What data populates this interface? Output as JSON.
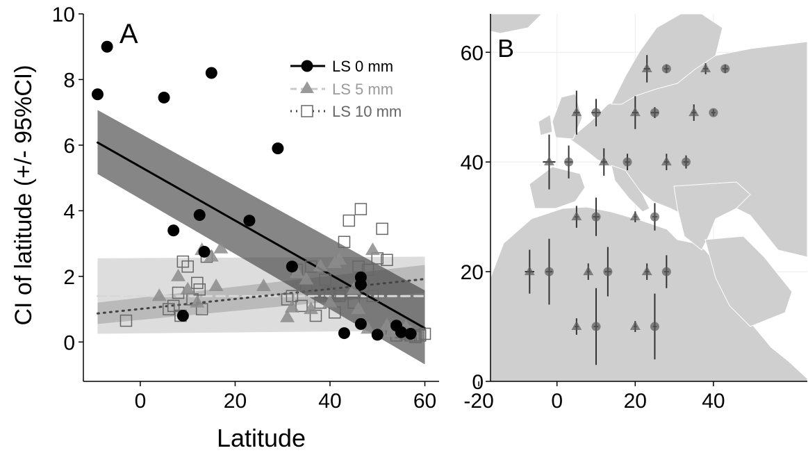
{
  "chart_data": [
    {
      "type": "scatter",
      "panel_label": "A",
      "xlabel": "Latitude",
      "ylabel": "CI of latitude (+/- 95%CI)",
      "xlim": [
        -12,
        63
      ],
      "ylim": [
        -1.2,
        10
      ],
      "xticks": [
        0,
        20,
        40,
        60
      ],
      "yticks": [
        0,
        2,
        4,
        6,
        8,
        10
      ],
      "grid": false,
      "legend_position": "top-right",
      "series": [
        {
          "name": "LS 0 mm",
          "marker": "filled-circle",
          "color": "#000000",
          "points": [
            [
              -9,
              7.55
            ],
            [
              -7,
              9.0
            ],
            [
              5,
              7.45
            ],
            [
              15,
              8.2
            ],
            [
              29,
              5.9
            ],
            [
              23,
              3.7
            ],
            [
              12.5,
              3.87
            ],
            [
              7,
              3.4
            ],
            [
              13.5,
              2.75
            ],
            [
              32,
              2.3
            ],
            [
              9,
              0.8
            ],
            [
              43,
              0.27
            ],
            [
              46.5,
              0.55
            ],
            [
              46.5,
              1.97
            ],
            [
              46.5,
              1.75
            ],
            [
              50,
              0.22
            ],
            [
              54,
              0.5
            ],
            [
              55,
              0.3
            ],
            [
              57,
              0.25
            ]
          ],
          "fit": {
            "x": [
              -9,
              60
            ],
            "y": [
              6.08,
              0.42
            ],
            "ci_low": [
              5.12,
              -0.68
            ],
            "ci_high": [
              7.07,
              1.57
            ],
            "line_style": "solid"
          }
        },
        {
          "name": "LS 5 mm",
          "marker": "filled-triangle",
          "color": "#9a9a9a",
          "points": [
            [
              4,
              1.4
            ],
            [
              8,
              2.0
            ],
            [
              10,
              1.6
            ],
            [
              12,
              1.2
            ],
            [
              13,
              2.8
            ],
            [
              15,
              2.6
            ],
            [
              17,
              2.85
            ],
            [
              16,
              1.7
            ],
            [
              26,
              1.7
            ],
            [
              31,
              0.75
            ],
            [
              32,
              1.05
            ],
            [
              33,
              2.1
            ],
            [
              35,
              1.9
            ],
            [
              36,
              1.0
            ],
            [
              38,
              2.3
            ],
            [
              40,
              1.2
            ],
            [
              41,
              2.4
            ],
            [
              42,
              2.5
            ],
            [
              45,
              1.6
            ],
            [
              46,
              1.0
            ],
            [
              48,
              0.4
            ],
            [
              49,
              2.8
            ],
            [
              52,
              0.5
            ],
            [
              53,
              0.3
            ],
            [
              55,
              0.4
            ],
            [
              56,
              0.45
            ],
            [
              57,
              0.3
            ]
          ],
          "fit": {
            "x": [
              -9,
              60
            ],
            "y": [
              1.4,
              1.4
            ],
            "ci_low": [
              0.25,
              0.35
            ],
            "ci_high": [
              2.55,
              2.6
            ],
            "line_style": "dashed"
          }
        },
        {
          "name": "LS 10 mm",
          "marker": "open-square",
          "color": "#666666",
          "points": [
            [
              -3,
              0.65
            ],
            [
              6,
              1.0
            ],
            [
              7,
              1.1
            ],
            [
              8,
              1.5
            ],
            [
              8.5,
              0.8
            ],
            [
              9,
              2.45
            ],
            [
              10,
              2.3
            ],
            [
              11,
              1.3
            ],
            [
              12,
              1.8
            ],
            [
              12.5,
              1.6
            ],
            [
              13,
              1.0
            ],
            [
              14,
              2.6
            ],
            [
              31,
              1.3
            ],
            [
              32,
              1.4
            ],
            [
              33,
              2.2
            ],
            [
              34,
              1.1
            ],
            [
              35,
              1.7
            ],
            [
              36,
              2.3
            ],
            [
              37,
              0.8
            ],
            [
              38,
              1.2
            ],
            [
              39,
              1.9
            ],
            [
              40,
              1.5
            ],
            [
              41,
              0.9
            ],
            [
              42,
              1.4
            ],
            [
              43,
              3.05
            ],
            [
              44,
              3.7
            ],
            [
              45,
              1.2
            ],
            [
              46,
              2.3
            ],
            [
              46.5,
              4.05
            ],
            [
              47,
              1.7
            ],
            [
              48,
              2.2
            ],
            [
              49,
              1.4
            ],
            [
              50,
              2.55
            ],
            [
              51,
              3.45
            ],
            [
              52,
              2.5
            ],
            [
              53,
              0.4
            ],
            [
              54,
              0.2
            ],
            [
              55,
              0.3
            ],
            [
              56,
              0.25
            ],
            [
              57,
              0.2
            ],
            [
              58,
              0.15
            ],
            [
              59,
              0.2
            ],
            [
              60,
              0.25
            ]
          ],
          "fit": {
            "x": [
              -9,
              60
            ],
            "y": [
              0.87,
              1.92
            ],
            "ci_low": [
              0.55,
              1.5
            ],
            "ci_high": [
              1.2,
              2.35
            ],
            "line_style": "dotted"
          }
        }
      ]
    },
    {
      "type": "scatter",
      "panel_label": "B",
      "xlabel": "",
      "ylabel": "",
      "xlim": [
        -17,
        64
      ],
      "ylim": [
        0,
        67
      ],
      "xticks": [
        -20,
        0,
        20,
        40
      ],
      "yticks": [
        0,
        20,
        40,
        60
      ],
      "grid": true,
      "background": "map",
      "series": [
        {
          "marker": "filled-triangle",
          "points": [
            [
              23,
              57
            ],
            [
              38,
              57
            ],
            [
              5,
              49
            ],
            [
              20,
              49
            ],
            [
              35,
              49
            ],
            [
              -2,
              40
            ],
            [
              12,
              40
            ],
            [
              28,
              40
            ],
            [
              5,
              30
            ],
            [
              20,
              30
            ],
            [
              -7,
              20
            ],
            [
              8,
              20
            ],
            [
              23,
              20
            ],
            [
              5,
              10
            ],
            [
              20,
              10
            ]
          ],
          "err_x": [
            0.8,
            0.6,
            0.8,
            0.8,
            0.6,
            1.6,
            0.8,
            0.6,
            0.5,
            0.4,
            1.2,
            0.4,
            0.5,
            0.5,
            0.4
          ],
          "err_y": [
            2.5,
            1.0,
            4.0,
            3.0,
            1.5,
            5.0,
            2.5,
            1.5,
            2.0,
            1.0,
            4.0,
            1.5,
            1.5,
            1.5,
            1.0
          ]
        },
        {
          "marker": "filled-circle",
          "points": [
            [
              28,
              57
            ],
            [
              43,
              57
            ],
            [
              10,
              49
            ],
            [
              25,
              49
            ],
            [
              40,
              49
            ],
            [
              3,
              40
            ],
            [
              18,
              40
            ],
            [
              33,
              40
            ],
            [
              10,
              30
            ],
            [
              25,
              30
            ],
            [
              -2,
              20
            ],
            [
              13,
              20
            ],
            [
              28,
              20
            ],
            [
              10,
              10
            ],
            [
              25,
              10
            ]
          ],
          "err_x": [
            0.6,
            0.7,
            1.2,
            1.0,
            0.5,
            1.0,
            0.6,
            0.7,
            0.8,
            0.6,
            0.8,
            0.8,
            0.6,
            0.6,
            0.5
          ],
          "err_y": [
            0.8,
            0.8,
            2.5,
            1.0,
            0.6,
            3.0,
            1.5,
            1.2,
            3.5,
            2.5,
            6.0,
            4.5,
            3.0,
            7.0,
            6.0
          ]
        }
      ]
    }
  ]
}
